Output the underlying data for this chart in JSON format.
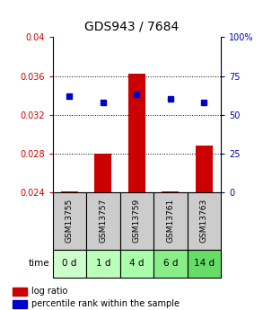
{
  "title": "GDS943 / 7684",
  "samples": [
    "GSM13755",
    "GSM13757",
    "GSM13759",
    "GSM13761",
    "GSM13763"
  ],
  "time_labels": [
    "0 d",
    "1 d",
    "4 d",
    "6 d",
    "14 d"
  ],
  "log_ratio_baseline": 0.024,
  "log_ratio_values": [
    0.0241,
    0.028,
    0.0362,
    0.0241,
    0.0288
  ],
  "percentile_values": [
    62,
    58,
    63,
    60,
    58
  ],
  "percentile_scale_max": 100,
  "ylim_left": [
    0.024,
    0.04
  ],
  "ylim_right": [
    0,
    100
  ],
  "yticks_left": [
    0.024,
    0.028,
    0.032,
    0.036,
    0.04
  ],
  "yticks_right": [
    0,
    25,
    50,
    75,
    100
  ],
  "bar_color": "#cc0000",
  "dot_color": "#0000cc",
  "bg_color": "#ffffff",
  "sample_bg": "#cccccc",
  "time_colors": [
    "#ccffcc",
    "#bbffbb",
    "#aaffaa",
    "#88ee88",
    "#66dd66"
  ],
  "left_label_color": "#cc0000",
  "right_label_color": "#0000bb",
  "legend_bar_label": "log ratio",
  "legend_dot_label": "percentile rank within the sample",
  "time_arrow_label": "time",
  "bar_width": 0.5,
  "dot_markersize": 4
}
